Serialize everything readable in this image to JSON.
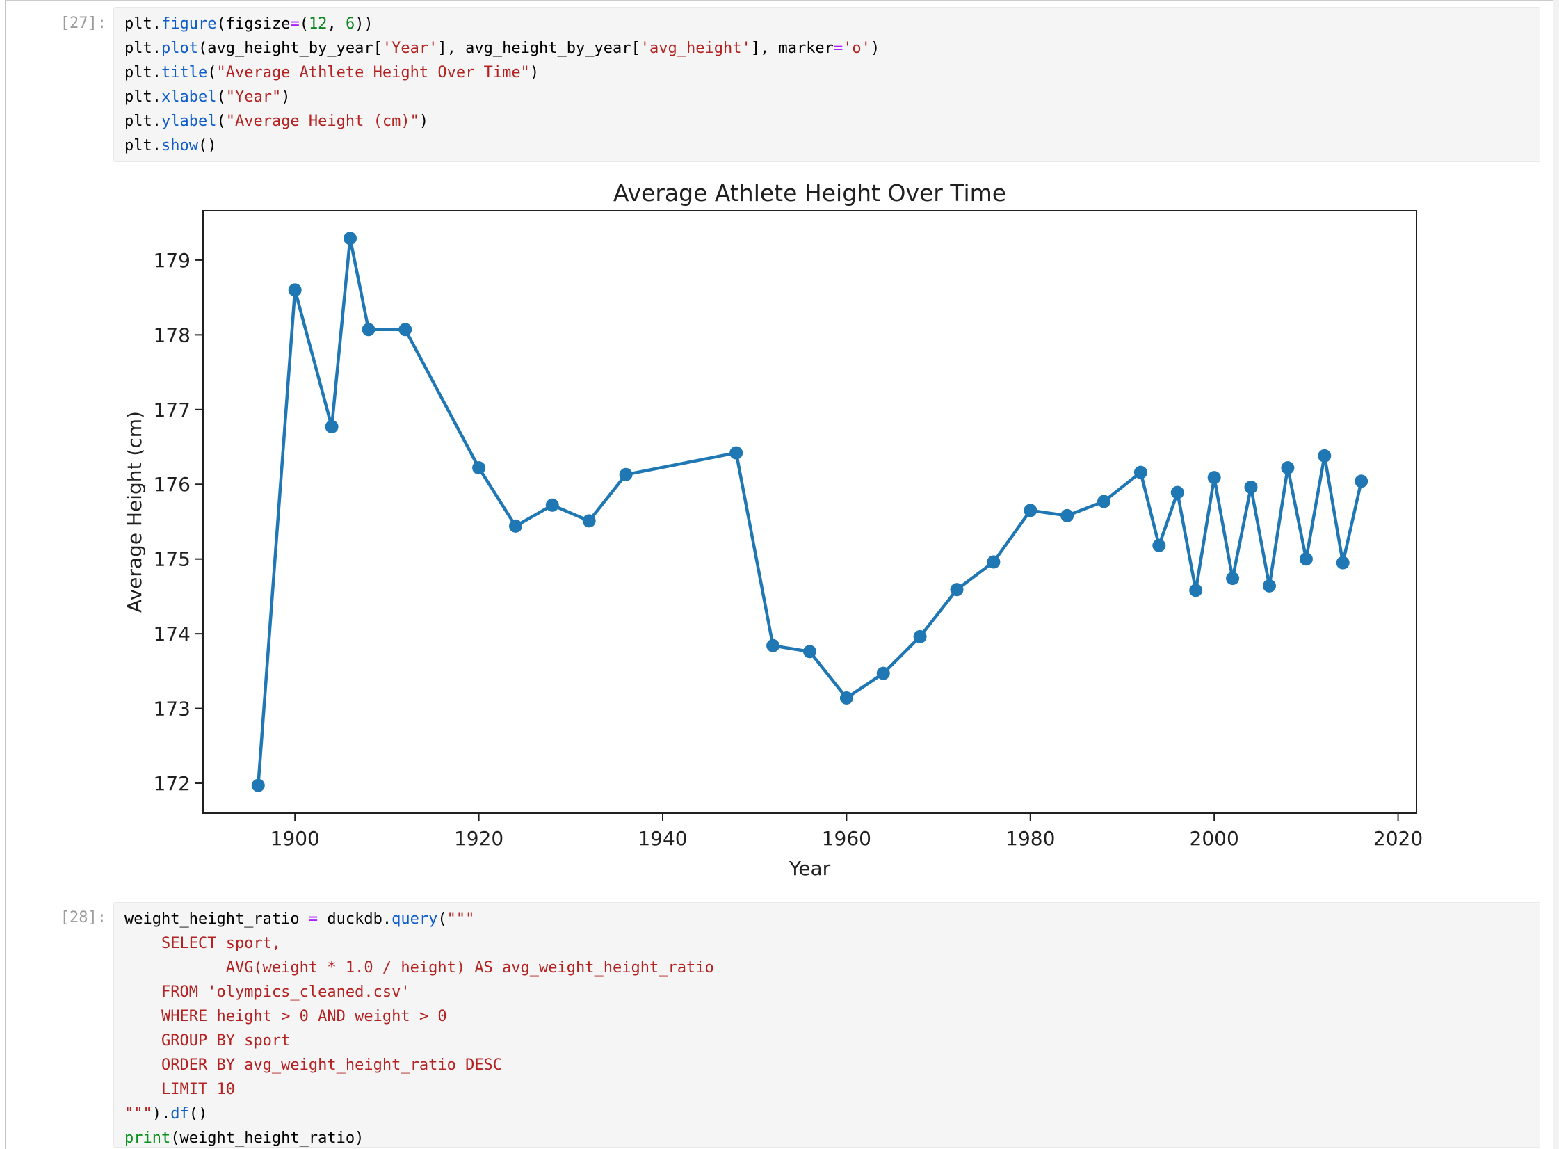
{
  "notebook": {
    "cells": [
      {
        "prompt": "[27]:",
        "lines": [
          [
            {
              "t": "plt.",
              "c": "d"
            },
            {
              "t": "figure",
              "c": "f"
            },
            {
              "t": "(figsize",
              "c": "d"
            },
            {
              "t": "=",
              "c": "o"
            },
            {
              "t": "(",
              "c": "d"
            },
            {
              "t": "12",
              "c": "n"
            },
            {
              "t": ", ",
              "c": "d"
            },
            {
              "t": "6",
              "c": "n"
            },
            {
              "t": "))",
              "c": "d"
            }
          ],
          [
            {
              "t": "plt.",
              "c": "d"
            },
            {
              "t": "plot",
              "c": "f"
            },
            {
              "t": "(avg_height_by_year[",
              "c": "d"
            },
            {
              "t": "'Year'",
              "c": "s"
            },
            {
              "t": "], avg_height_by_year[",
              "c": "d"
            },
            {
              "t": "'avg_height'",
              "c": "s"
            },
            {
              "t": "], marker",
              "c": "d"
            },
            {
              "t": "=",
              "c": "o"
            },
            {
              "t": "'o'",
              "c": "s"
            },
            {
              "t": ")",
              "c": "d"
            }
          ],
          [
            {
              "t": "plt.",
              "c": "d"
            },
            {
              "t": "title",
              "c": "f"
            },
            {
              "t": "(",
              "c": "d"
            },
            {
              "t": "\"Average Athlete Height Over Time\"",
              "c": "s"
            },
            {
              "t": ")",
              "c": "d"
            }
          ],
          [
            {
              "t": "plt.",
              "c": "d"
            },
            {
              "t": "xlabel",
              "c": "f"
            },
            {
              "t": "(",
              "c": "d"
            },
            {
              "t": "\"Year\"",
              "c": "s"
            },
            {
              "t": ")",
              "c": "d"
            }
          ],
          [
            {
              "t": "plt.",
              "c": "d"
            },
            {
              "t": "ylabel",
              "c": "f"
            },
            {
              "t": "(",
              "c": "d"
            },
            {
              "t": "\"Average Height (cm)\"",
              "c": "s"
            },
            {
              "t": ")",
              "c": "d"
            }
          ],
          [
            {
              "t": "plt.",
              "c": "d"
            },
            {
              "t": "show",
              "c": "f"
            },
            {
              "t": "()",
              "c": "d"
            }
          ]
        ]
      },
      {
        "prompt": "[28]:",
        "lines": [
          [
            {
              "t": "weight_height_ratio ",
              "c": "d"
            },
            {
              "t": "=",
              "c": "o"
            },
            {
              "t": " duckdb.",
              "c": "d"
            },
            {
              "t": "query",
              "c": "f"
            },
            {
              "t": "(",
              "c": "d"
            },
            {
              "t": "\"\"\"",
              "c": "s"
            }
          ],
          [
            {
              "t": "    SELECT sport,",
              "c": "s"
            }
          ],
          [
            {
              "t": "           AVG(weight * 1.0 / height) AS avg_weight_height_ratio",
              "c": "s"
            }
          ],
          [
            {
              "t": "    FROM 'olympics_cleaned.csv'",
              "c": "s"
            }
          ],
          [
            {
              "t": "    WHERE height > 0 AND weight > 0",
              "c": "s"
            }
          ],
          [
            {
              "t": "    GROUP BY sport",
              "c": "s"
            }
          ],
          [
            {
              "t": "    ORDER BY avg_weight_height_ratio DESC",
              "c": "s"
            }
          ],
          [
            {
              "t": "    LIMIT 10",
              "c": "s"
            }
          ],
          [
            {
              "t": "\"\"\"",
              "c": "s"
            },
            {
              "t": ").",
              "c": "d"
            },
            {
              "t": "df",
              "c": "f"
            },
            {
              "t": "()",
              "c": "d"
            }
          ],
          [
            {
              "t": "print",
              "c": "b"
            },
            {
              "t": "(weight_height_ratio)",
              "c": "d"
            }
          ]
        ]
      }
    ]
  },
  "chart_data": {
    "type": "line",
    "title": "Average Athlete Height Over Time",
    "xlabel": "Year",
    "ylabel": "Average Height (cm)",
    "x": [
      1896,
      1900,
      1904,
      1906,
      1908,
      1912,
      1920,
      1924,
      1928,
      1932,
      1936,
      1948,
      1952,
      1956,
      1960,
      1964,
      1968,
      1972,
      1976,
      1980,
      1984,
      1988,
      1992,
      1994,
      1996,
      1998,
      2000,
      2002,
      2004,
      2006,
      2008,
      2010,
      2012,
      2014,
      2016
    ],
    "series": [
      {
        "name": "avg_height",
        "values": [
          171.97,
          178.6,
          176.77,
          179.29,
          178.07,
          178.07,
          176.22,
          175.44,
          175.72,
          175.51,
          176.13,
          176.42,
          173.84,
          173.76,
          173.14,
          173.47,
          173.96,
          174.59,
          174.96,
          175.65,
          175.58,
          175.77,
          176.16,
          175.18,
          175.89,
          174.58,
          176.09,
          174.74,
          175.96,
          174.64,
          176.22,
          175.0,
          176.38,
          174.95,
          176.04
        ]
      }
    ],
    "marker": "o",
    "line_color": "#1f77b4",
    "text_color": "#202020",
    "xlim": [
      1890,
      2022
    ],
    "ylim": [
      171.6,
      179.66
    ],
    "xticks": [
      1900,
      1920,
      1940,
      1960,
      1980,
      2000,
      2020
    ],
    "yticks": [
      172,
      173,
      174,
      175,
      176,
      177,
      178,
      179
    ],
    "grid": false,
    "legend_position": "none"
  }
}
